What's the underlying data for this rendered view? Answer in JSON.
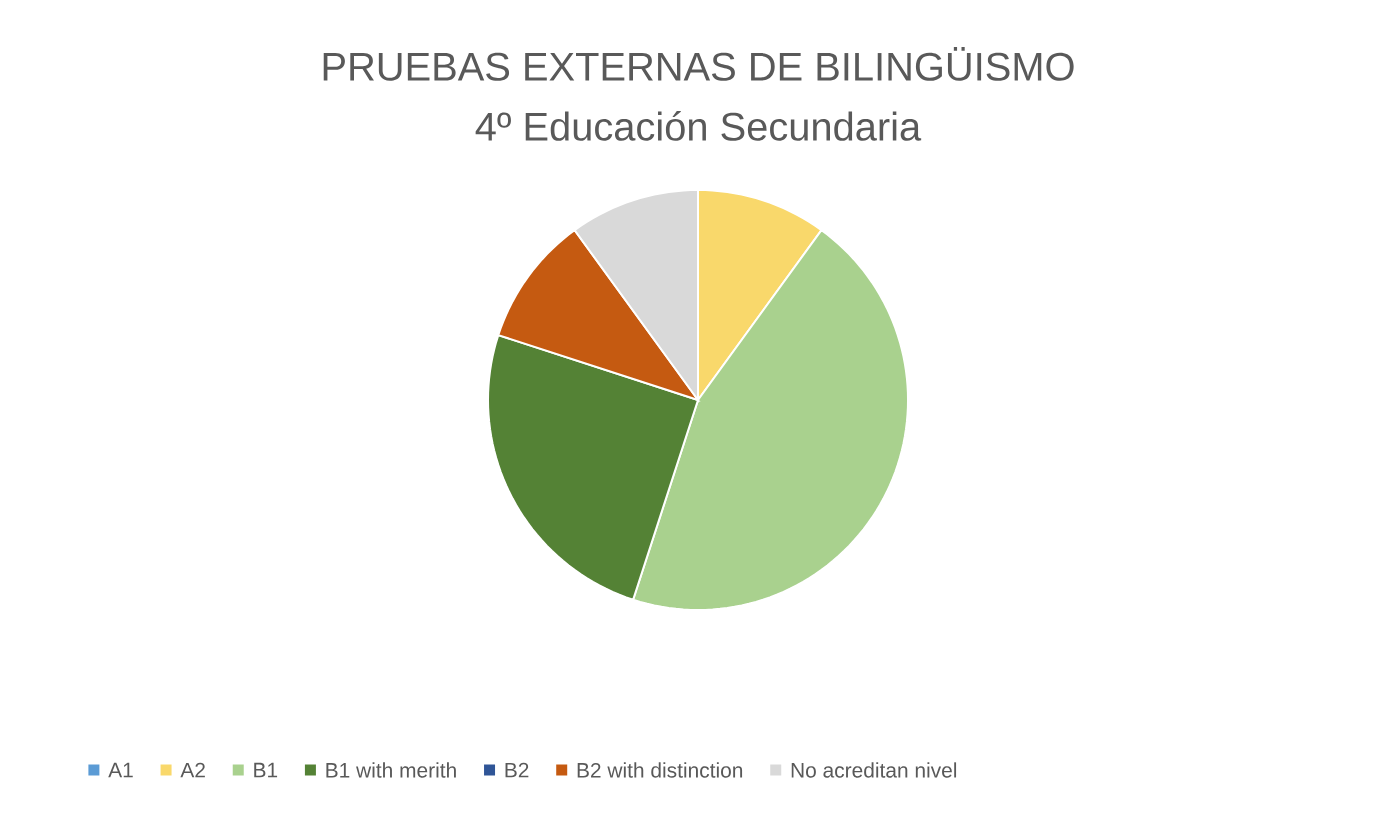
{
  "chart_data": {
    "type": "pie",
    "title": "PRUEBAS EXTERNAS DE BILINGÜISMO",
    "subtitle": "4º Educación Secundaria",
    "categories": [
      "A1",
      "A2",
      "B1",
      "B1 with merith",
      "B2",
      "B2 with distinction",
      "No acreditan nivel"
    ],
    "values": [
      0,
      10,
      45,
      25,
      0,
      10,
      10
    ],
    "colors": [
      "#5b9bd5",
      "#f9d86b",
      "#a9d18e",
      "#548235",
      "#2f5597",
      "#c55a11",
      "#d9d9d9"
    ],
    "legend": "bottom"
  }
}
